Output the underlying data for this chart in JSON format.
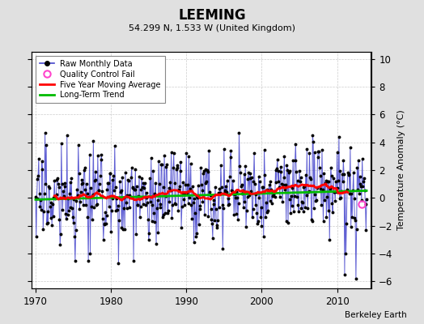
{
  "title": "LEEMING",
  "subtitle": "54.299 N, 1.533 W (United Kingdom)",
  "ylabel": "Temperature Anomaly (°C)",
  "attribution": "Berkeley Earth",
  "xlim": [
    1969.5,
    2014.5
  ],
  "ylim": [
    -6.5,
    10.5
  ],
  "yticks": [
    -6,
    -4,
    -2,
    0,
    2,
    4,
    6,
    8,
    10
  ],
  "xticks": [
    1970,
    1980,
    1990,
    2000,
    2010
  ],
  "bg_color": "#e0e0e0",
  "plot_bg_color": "#ffffff",
  "raw_line_color": "#4444cc",
  "raw_dot_color": "#000000",
  "ma_color": "#ff0000",
  "trend_color": "#00bb00",
  "qc_fail_color": "#ff44cc",
  "grid_color": "#c0c0c0",
  "seed": 17,
  "n_months": 528,
  "start_year": 1970.0,
  "end_year": 2013.917
}
